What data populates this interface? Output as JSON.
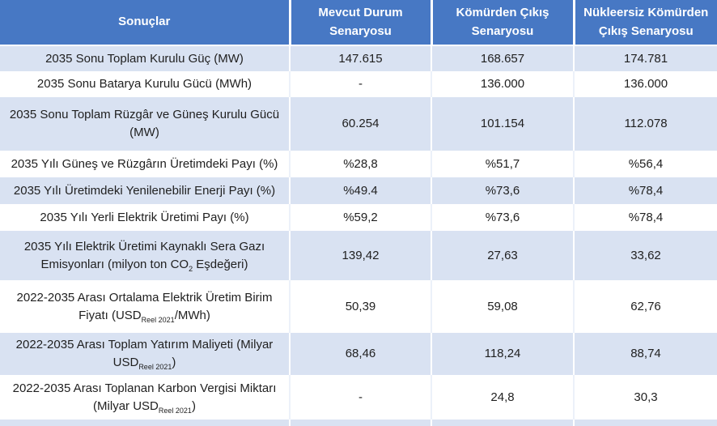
{
  "table": {
    "columns": [
      {
        "label": "Sonuçlar"
      },
      {
        "label": "Mevcut Durum Senaryosu"
      },
      {
        "label": "Kömürden Çıkış Senaryosu"
      },
      {
        "label": "Nükleersiz Kömürden Çıkış Senaryosu"
      }
    ],
    "rows": [
      {
        "label_parts": [
          {
            "t": "2035 Sonu Toplam Kurulu Güç (MW)"
          }
        ],
        "values": [
          "147.615",
          "168.657",
          "174.781"
        ]
      },
      {
        "label_parts": [
          {
            "t": "2035 Sonu Batarya Kurulu Gücü (MWh)"
          }
        ],
        "values": [
          "-",
          "136.000",
          "136.000"
        ]
      },
      {
        "label_parts": [
          {
            "t": "2035 Sonu Toplam Rüzgâr ve Güneş Kurulu Gücü (MW)"
          }
        ],
        "values": [
          "60.254",
          "101.154",
          "112.078"
        ]
      },
      {
        "label_parts": [
          {
            "t": "2035 Yılı Güneş ve Rüzgârın Üretimdeki Payı (%)"
          }
        ],
        "values": [
          "%28,8",
          "%51,7",
          "%56,4"
        ]
      },
      {
        "label_parts": [
          {
            "t": "2035 Yılı Üretimdeki Yenilenebilir Enerji Payı (%)"
          }
        ],
        "values": [
          "%49.4",
          "%73,6",
          "%78,4"
        ]
      },
      {
        "label_parts": [
          {
            "t": "2035 Yılı Yerli Elektrik Üretimi Payı (%)"
          }
        ],
        "values": [
          "%59,2",
          "%73,6",
          "%78,4"
        ]
      },
      {
        "label_parts": [
          {
            "t": "2035 Yılı Elektrik Üretimi Kaynaklı Sera Gazı Emisyonları (milyon ton CO"
          },
          {
            "t": "2",
            "sub": true
          },
          {
            "t": " Eşdeğeri)"
          }
        ],
        "values": [
          "139,42",
          "27,63",
          "33,62"
        ]
      },
      {
        "label_parts": [
          {
            "t": "2022-2035 Arası Ortalama Elektrik Üretim Birim Fiyatı (USD"
          },
          {
            "t": "Reel 2021",
            "sub": true
          },
          {
            "t": "/MWh)"
          }
        ],
        "values": [
          "50,39",
          "59,08",
          "62,76"
        ]
      },
      {
        "label_parts": [
          {
            "t": "2022-2035 Arası Toplam Yatırım Maliyeti (Milyar USD"
          },
          {
            "t": "Reel 2021",
            "sub": true
          },
          {
            "t": ")"
          }
        ],
        "values": [
          "68,46",
          "118,24",
          "88,74"
        ]
      },
      {
        "label_parts": [
          {
            "t": "2022-2035 Arası Toplanan Karbon Vergisi Miktarı (Milyar USD"
          },
          {
            "t": "Reel 2021",
            "sub": true
          },
          {
            "t": ")"
          }
        ],
        "values": [
          "-",
          "24,8",
          "30,3"
        ]
      }
    ],
    "colors": {
      "header_bg": "#4778C4",
      "header_text": "#FFFFFF",
      "row_shaded_bg": "#D9E2F2",
      "row_plain_bg": "#FFFFFF",
      "body_text": "#1F1F1F"
    }
  }
}
